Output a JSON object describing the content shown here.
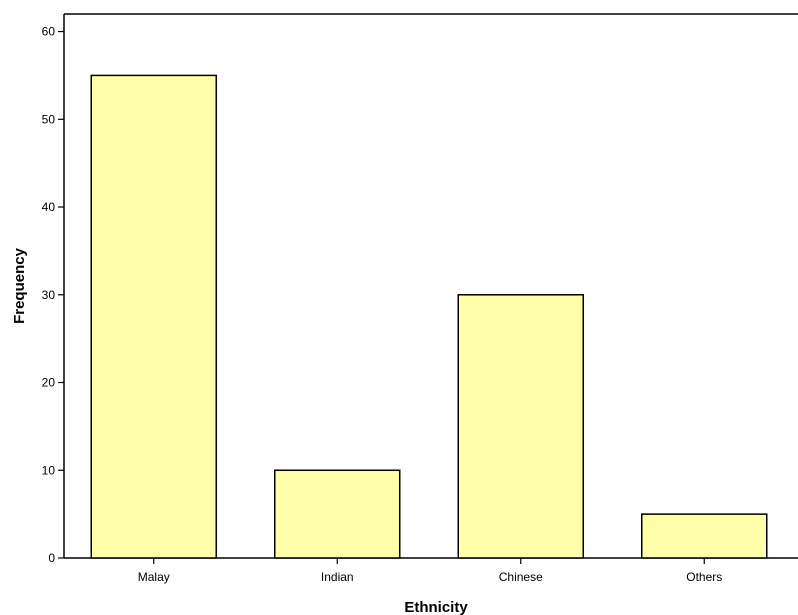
{
  "chart_data": {
    "type": "bar",
    "categories": [
      "Malay",
      "Indian",
      "Chinese",
      "Others"
    ],
    "values": [
      55,
      10,
      30,
      5
    ],
    "title": "",
    "xlabel": "Ethnicity",
    "ylabel": "Frequency",
    "ylim": [
      0,
      62
    ],
    "yticks": [
      0,
      10,
      20,
      30,
      40,
      50,
      60
    ],
    "grid": false,
    "bar_color": "#ffffaa",
    "bar_edge_color": "#000000"
  }
}
